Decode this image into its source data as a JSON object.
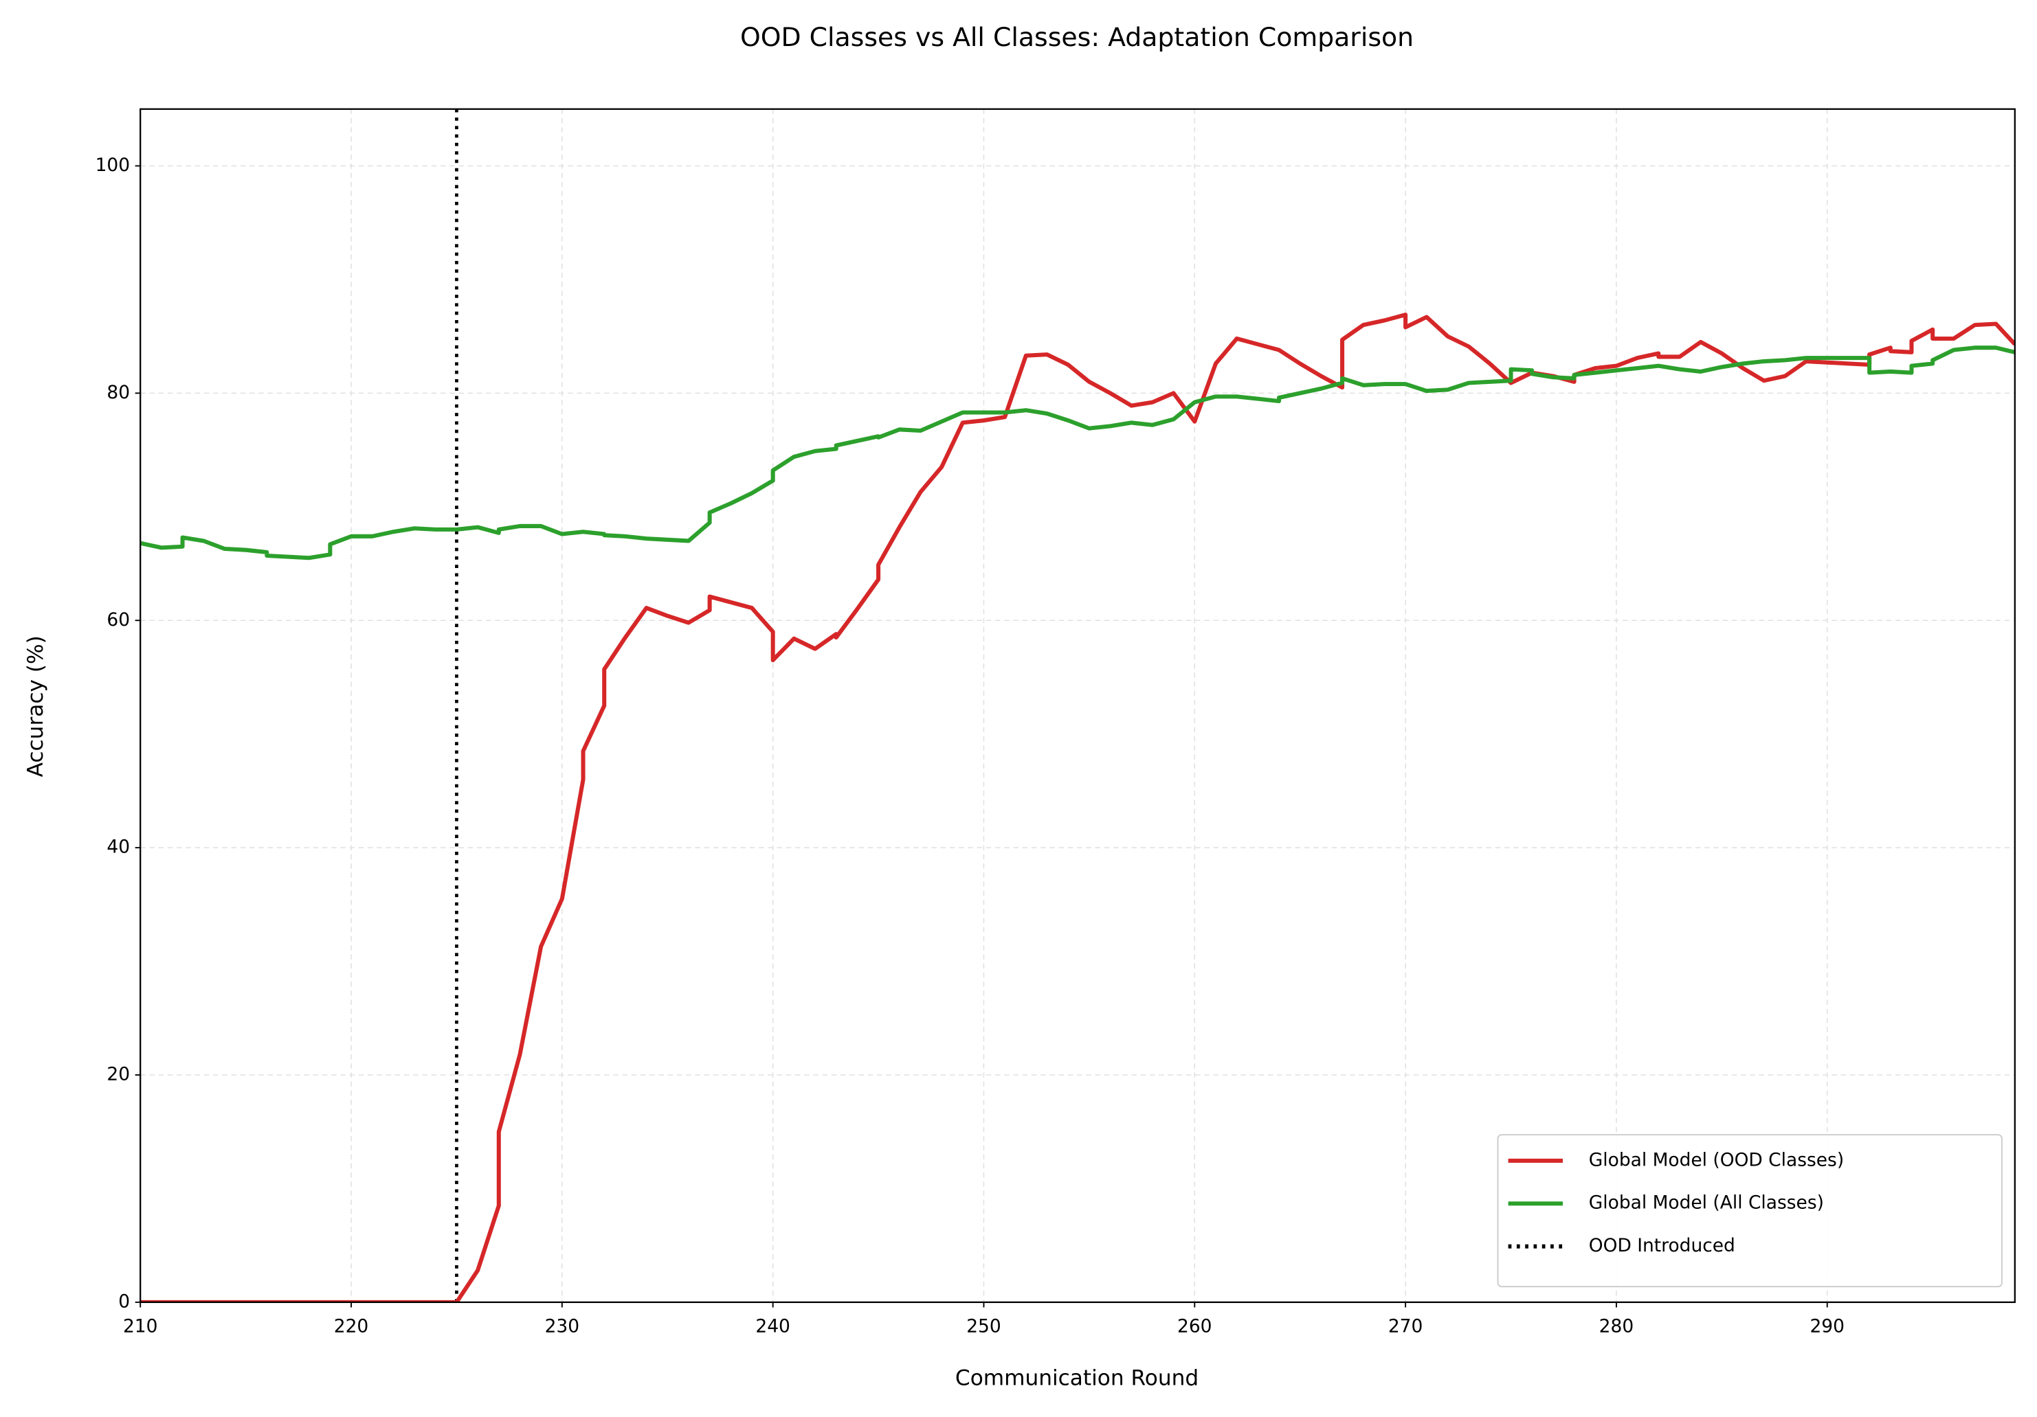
{
  "chart_data": {
    "type": "line",
    "title": "OOD Classes vs All Classes: Adaptation Comparison",
    "xlabel": "Communication Round",
    "ylabel": "Accuracy (%)",
    "xlim": [
      210,
      298.9
    ],
    "ylim": [
      0,
      105
    ],
    "xticks": [
      210,
      220,
      230,
      240,
      250,
      260,
      270,
      280,
      290
    ],
    "yticks": [
      0,
      20,
      40,
      60,
      80,
      100
    ],
    "grid": true,
    "legend": "lower right",
    "series": [
      {
        "name": "Global Model (OOD Classes)",
        "color": "#d62728",
        "x": [
          210,
          225,
          226,
          227,
          227,
          228,
          229,
          230,
          231,
          231,
          232,
          232,
          233,
          234,
          235,
          236,
          237,
          237,
          238,
          239,
          240,
          240,
          241,
          242,
          243,
          243,
          244,
          245,
          245,
          246,
          247,
          248,
          249,
          250,
          251,
          252,
          253,
          254,
          255,
          256,
          257,
          258,
          259,
          260,
          261,
          262,
          263,
          264,
          265,
          266,
          267,
          267,
          268,
          269,
          270,
          270,
          271,
          272,
          273,
          274,
          275,
          276,
          277,
          278,
          278,
          279,
          280,
          281,
          282,
          282,
          283,
          284,
          285,
          286,
          287,
          288,
          289,
          290,
          291,
          292,
          292,
          293,
          293,
          294,
          294,
          295,
          295,
          296,
          297,
          298,
          298.9
        ],
        "values": [
          0,
          0,
          2.8,
          8.5,
          15,
          21.8,
          31.3,
          35.5,
          46,
          48.5,
          52.5,
          55.7,
          58.5,
          61.1,
          60.4,
          59.8,
          60.9,
          62.1,
          61.6,
          61.1,
          59,
          56.5,
          58.4,
          57.5,
          58.8,
          58.5,
          61,
          63.6,
          64.9,
          68.2,
          71.3,
          73.5,
          77.4,
          77.6,
          77.9,
          83.3,
          83.4,
          82.5,
          81,
          80,
          78.9,
          79.2,
          80,
          77.5,
          82.6,
          84.8,
          84.3,
          83.8,
          82.6,
          81.5,
          80.5,
          84.7,
          86,
          86.4,
          86.9,
          85.8,
          86.7,
          85,
          84.1,
          82.6,
          80.9,
          81.8,
          81.5,
          81,
          81.6,
          82.2,
          82.4,
          83.1,
          83.5,
          83.2,
          83.2,
          84.5,
          83.5,
          82.2,
          81.1,
          81.5,
          82.8,
          82.7,
          82.6,
          82.5,
          83.4,
          84,
          83.7,
          83.6,
          84.6,
          85.6,
          84.8,
          84.8,
          86,
          86.1,
          84.3
        ]
      },
      {
        "name": "Global Model (All Classes)",
        "color": "#2ca02c",
        "x": [
          210,
          211,
          212,
          212,
          213,
          214,
          215,
          216,
          216,
          217,
          218,
          219,
          219,
          220,
          221,
          222,
          223,
          224,
          225,
          226,
          227,
          227,
          228,
          229,
          230,
          231,
          232,
          232,
          233,
          234,
          235,
          236,
          237,
          237,
          238,
          239,
          240,
          240,
          241,
          242,
          243,
          243,
          244,
          245,
          245,
          246,
          247,
          248,
          249,
          250,
          251,
          252,
          253,
          254,
          255,
          256,
          257,
          258,
          259,
          260,
          261,
          262,
          263,
          264,
          264,
          265,
          266,
          267,
          267,
          268,
          269,
          270,
          271,
          272,
          273,
          274,
          275,
          275,
          276,
          276,
          277,
          278,
          278,
          279,
          280,
          281,
          282,
          283,
          284,
          285,
          286,
          287,
          288,
          289,
          290,
          291,
          292,
          292,
          293,
          294,
          294,
          295,
          295,
          296,
          297,
          298,
          298.9
        ],
        "values": [
          66.8,
          66.4,
          66.5,
          67.3,
          67,
          66.3,
          66.2,
          66,
          65.7,
          65.6,
          65.5,
          65.8,
          66.7,
          67.4,
          67.4,
          67.8,
          68.1,
          68,
          68,
          68.2,
          67.7,
          68,
          68.3,
          68.3,
          67.6,
          67.8,
          67.6,
          67.5,
          67.4,
          67.2,
          67.1,
          67,
          68.6,
          69.5,
          70.3,
          71.2,
          72.3,
          73.2,
          74.4,
          74.9,
          75.1,
          75.4,
          75.8,
          76.2,
          76.1,
          76.8,
          76.7,
          77.5,
          78.3,
          78.3,
          78.3,
          78.5,
          78.2,
          77.6,
          76.9,
          77.1,
          77.4,
          77.2,
          77.7,
          79.2,
          79.7,
          79.7,
          79.5,
          79.3,
          79.6,
          80,
          80.4,
          80.9,
          81.3,
          80.7,
          80.8,
          80.8,
          80.2,
          80.3,
          80.9,
          81,
          81.1,
          82.1,
          82,
          81.7,
          81.4,
          81.3,
          81.6,
          81.8,
          82,
          82.2,
          82.4,
          82.1,
          81.9,
          82.3,
          82.6,
          82.8,
          82.9,
          83.1,
          83.1,
          83.1,
          83.1,
          81.8,
          81.9,
          81.8,
          82.4,
          82.6,
          82.9,
          83.8,
          84,
          84,
          83.6
        ]
      }
    ],
    "reference_line": {
      "name": "OOD Introduced",
      "x": 225,
      "color": "#000000",
      "style": "dotted"
    }
  }
}
